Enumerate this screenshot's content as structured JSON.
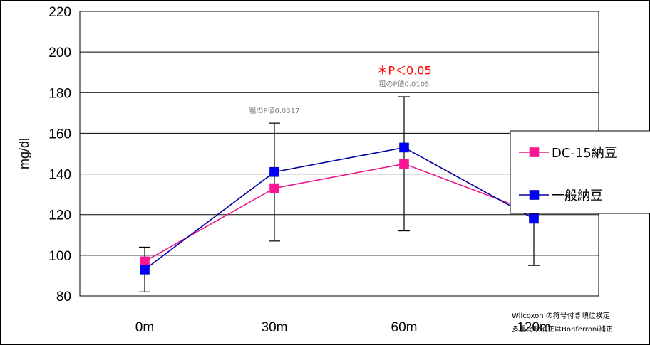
{
  "chart_data": {
    "type": "line",
    "title": "",
    "xlabel": "",
    "ylabel": "mg/dl",
    "categories": [
      "0m",
      "30m",
      "60m",
      "120m"
    ],
    "ylim": [
      80,
      220
    ],
    "yticks": [
      80,
      100,
      120,
      140,
      160,
      180,
      200,
      220
    ],
    "grid": true,
    "legend_position": "right",
    "series": [
      {
        "name": "DC-15納豆",
        "values": [
          97,
          133,
          145,
          121
        ],
        "color": "#e6198c",
        "marker_color": "#ff1493"
      },
      {
        "name": "一般納豆",
        "values": [
          93,
          141,
          153,
          118
        ],
        "color": "#0000a0",
        "marker_color": "#0000ff"
      }
    ],
    "error_bars": [
      {
        "category": "0m",
        "low": 82,
        "high": 104
      },
      {
        "category": "30m",
        "low": 107,
        "high": 165
      },
      {
        "category": "60m",
        "low": 112,
        "high": 178
      },
      {
        "category": "120m",
        "low": 95,
        "high": 140
      }
    ],
    "annotations": [
      {
        "id": "p30",
        "category": "30m",
        "text": "粗のP値0.0317",
        "color": "#808080",
        "y": 170
      },
      {
        "id": "p60raw",
        "category": "60m",
        "text": "粗のP値0.0105",
        "color": "#808080",
        "y": 183
      },
      {
        "id": "p60sig",
        "category": "60m",
        "text": "＊P＜0.05",
        "color": "#ff0000",
        "y": 189
      }
    ],
    "notes": [
      "Wilcoxon の符号付き順位検定",
      "多重比較補正はBonferroni補正"
    ]
  }
}
